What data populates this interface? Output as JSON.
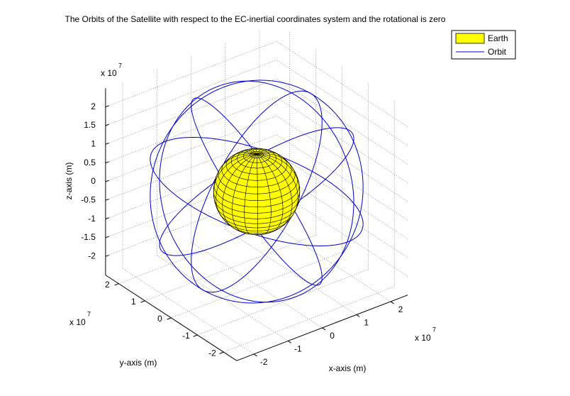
{
  "chart_data": {
    "type": "orbit3d",
    "title": "The Orbits of the Satellite with respect to the EC-inertial coordinates system and the rotational is zero",
    "xlabel": "x-axis (m)",
    "ylabel": "y-axis (m)",
    "zlabel": "z-axis (m)",
    "multiplier": {
      "base": "x 10",
      "power": "7"
    },
    "view": {
      "azimuth": -37.5,
      "elevation": 30
    },
    "xlim": [
      -2.5,
      2.5
    ],
    "ylim": [
      -2.5,
      2.5
    ],
    "zlim": [
      -2.5,
      2.5
    ],
    "xticks": [
      -2,
      -1,
      0,
      1,
      2
    ],
    "yticks": [
      -2,
      -1,
      0,
      1,
      2
    ],
    "zticks": [
      -2,
      -1.5,
      -1,
      -0.5,
      0,
      0.5,
      1,
      1.5,
      2
    ],
    "grid": true,
    "legend": "top-right",
    "series": [
      {
        "name": "Earth",
        "color": "#ffff00",
        "radius": 1.0
      },
      {
        "name": "Orbit",
        "color": "#0000cc",
        "radius": 2.6,
        "inclination": 55,
        "raan": [
          0,
          60,
          120,
          180,
          240,
          300
        ]
      }
    ]
  }
}
